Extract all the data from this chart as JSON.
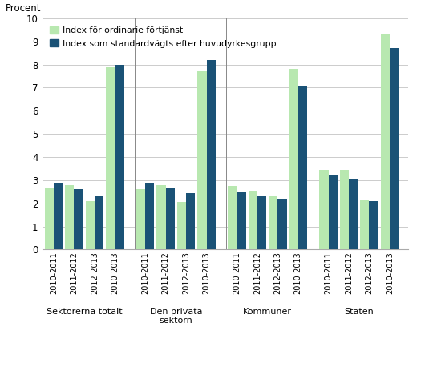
{
  "groups": [
    "Sektorerna totalt",
    "Den privata\nsektorn",
    "Kommuner",
    "Staten"
  ],
  "years": [
    "2010-2011",
    "2011-2012",
    "2012-2013",
    "2010-2013"
  ],
  "green_values": [
    [
      2.7,
      2.8,
      2.1,
      7.9
    ],
    [
      2.6,
      2.8,
      2.05,
      7.7
    ],
    [
      2.75,
      2.55,
      2.35,
      7.8
    ],
    [
      3.45,
      3.45,
      2.15,
      9.35
    ]
  ],
  "blue_values": [
    [
      2.9,
      2.6,
      2.35,
      8.0
    ],
    [
      2.9,
      2.7,
      2.45,
      8.2
    ],
    [
      2.5,
      2.3,
      2.2,
      7.1
    ],
    [
      3.25,
      3.05,
      2.1,
      8.7
    ]
  ],
  "green_color": "#b8e8b0",
  "blue_color": "#1a5276",
  "ylabel": "Procent",
  "ylim": [
    0,
    10
  ],
  "yticks": [
    0,
    1,
    2,
    3,
    4,
    5,
    6,
    7,
    8,
    9,
    10
  ],
  "legend_labels": [
    "Index för ordinarie förtjänst",
    "Index som standardvägts efter huvudyrkesgrupp"
  ],
  "background_color": "#ffffff",
  "grid_color": "#cccccc",
  "figsize": [
    5.25,
    4.58
  ],
  "dpi": 100
}
